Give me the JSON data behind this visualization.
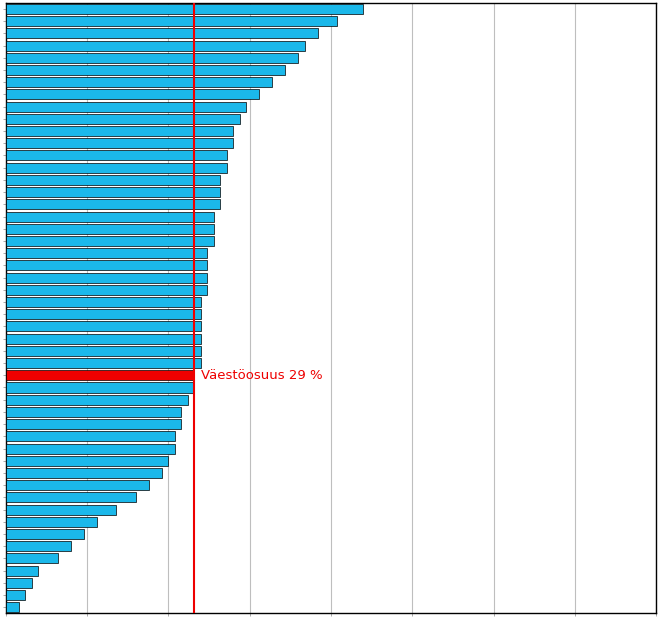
{
  "values": [
    55,
    51,
    48,
    46,
    45,
    43,
    41,
    39,
    37,
    36,
    35,
    35,
    34,
    34,
    33,
    33,
    33,
    32,
    32,
    32,
    31,
    31,
    31,
    31,
    30,
    30,
    30,
    30,
    30,
    30,
    29,
    29,
    28,
    27,
    27,
    26,
    26,
    25,
    24,
    22,
    20,
    17,
    14,
    12,
    10,
    8,
    5,
    4,
    3,
    2
  ],
  "red_bar_index": 30,
  "vline_value": 29,
  "vline_label": "Väestöosuus 29 %",
  "bar_color": "#1BB8EA",
  "red_color": "#EE0000",
  "bar_edgecolor": "#000000",
  "background_color": "#FFFFFF",
  "grid_color": "#BEBEBE",
  "xmax": 100,
  "n_xgrid_lines": 8,
  "label_fontsize": 9.5
}
